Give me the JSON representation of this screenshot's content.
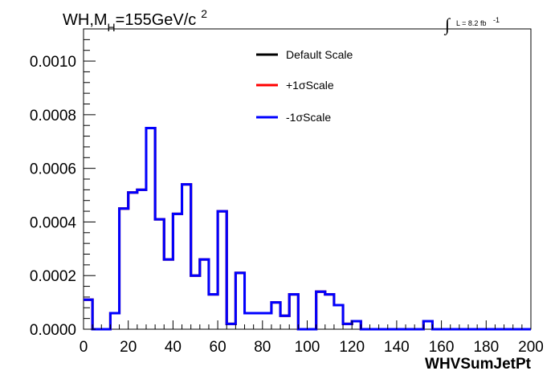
{
  "chart_data": {
    "type": "histogram",
    "title_parts": [
      "WH,M",
      "H",
      "=155GeV/c",
      "2"
    ],
    "lumi_label": "L = 8.2 fb",
    "lumi_exponent": "-1",
    "xlabel": "WHVSumJetPt",
    "ylabel": "",
    "xlim": [
      0,
      200
    ],
    "ylim": [
      0,
      0.00112
    ],
    "x_ticks": [
      0,
      20,
      40,
      60,
      80,
      100,
      120,
      140,
      160,
      180,
      200
    ],
    "x_tick_labels": [
      "0",
      "20",
      "40",
      "60",
      "80",
      "100",
      "120",
      "140",
      "160",
      "180",
      "200"
    ],
    "y_ticks": [
      0,
      0.0002,
      0.0004,
      0.0006,
      0.0008,
      0.001
    ],
    "y_tick_labels": [
      "0.0000",
      "0.0002",
      "0.0004",
      "0.0006",
      "0.0008",
      "0.0010"
    ],
    "bin_edges": [
      0,
      4,
      8,
      12,
      16,
      20,
      24,
      28,
      32,
      36,
      40,
      44,
      48,
      52,
      56,
      60,
      64,
      68,
      72,
      76,
      80,
      84,
      88,
      92,
      96,
      100,
      104,
      108,
      112,
      116,
      120,
      124,
      128,
      132,
      136,
      140,
      144,
      148,
      152,
      156,
      160,
      164,
      168,
      172,
      176,
      180,
      184,
      188,
      192,
      196,
      200
    ],
    "legend": [
      {
        "label": "Default Scale",
        "color": "#000000"
      },
      {
        "label": "+1σScale",
        "color": "#ff0000"
      },
      {
        "label": "-1σScale",
        "color": "#0000ff"
      }
    ],
    "series": [
      {
        "name": "Default Scale",
        "color": "#000000",
        "values": [
          0.00011,
          0.0,
          0.0,
          6e-05,
          0.00045,
          0.00051,
          0.00052,
          0.00075,
          0.00041,
          0.00026,
          0.00043,
          0.00054,
          0.0002,
          0.00026,
          0.00013,
          0.00044,
          2e-05,
          0.00021,
          6e-05,
          6e-05,
          6e-05,
          0.0001,
          5e-05,
          0.00013,
          0.0,
          0.0,
          0.00014,
          0.00013,
          9e-05,
          2e-05,
          3e-05,
          0.0,
          0.0,
          0.0,
          0.0,
          0.0,
          0.0,
          0.0,
          3e-05,
          0.0,
          0.0,
          0.0,
          0.0,
          0.0,
          0.0,
          0.0,
          0.0,
          0.0,
          0.0,
          0.0
        ]
      },
      {
        "name": "+1σScale",
        "color": "#ff0000",
        "values": [
          0.00011,
          0.0,
          0.0,
          6e-05,
          0.00045,
          0.00051,
          0.00052,
          0.00075,
          0.00041,
          0.00026,
          0.00043,
          0.00054,
          0.0002,
          0.00026,
          0.00013,
          0.00044,
          2e-05,
          0.00021,
          6e-05,
          6e-05,
          6e-05,
          0.0001,
          5e-05,
          0.00013,
          0.0,
          0.0,
          0.00014,
          0.00013,
          9e-05,
          2e-05,
          3e-05,
          0.0,
          0.0,
          0.0,
          0.0,
          0.0,
          0.0,
          0.0,
          3e-05,
          0.0,
          0.0,
          0.0,
          0.0,
          0.0,
          0.0,
          0.0,
          0.0,
          0.0,
          0.0,
          0.0
        ]
      },
      {
        "name": "-1σScale",
        "color": "#0000ff",
        "values": [
          0.00011,
          0.0,
          0.0,
          6e-05,
          0.00045,
          0.00051,
          0.00052,
          0.00075,
          0.00041,
          0.00026,
          0.00043,
          0.00054,
          0.0002,
          0.00026,
          0.00013,
          0.00044,
          2e-05,
          0.00021,
          6e-05,
          6e-05,
          6e-05,
          0.0001,
          5e-05,
          0.00013,
          0.0,
          0.0,
          0.00014,
          0.00013,
          9e-05,
          2e-05,
          3e-05,
          0.0,
          0.0,
          0.0,
          0.0,
          0.0,
          0.0,
          0.0,
          3e-05,
          0.0,
          0.0,
          0.0,
          0.0,
          0.0,
          0.0,
          0.0,
          0.0,
          0.0,
          0.0,
          0.0
        ]
      }
    ]
  }
}
